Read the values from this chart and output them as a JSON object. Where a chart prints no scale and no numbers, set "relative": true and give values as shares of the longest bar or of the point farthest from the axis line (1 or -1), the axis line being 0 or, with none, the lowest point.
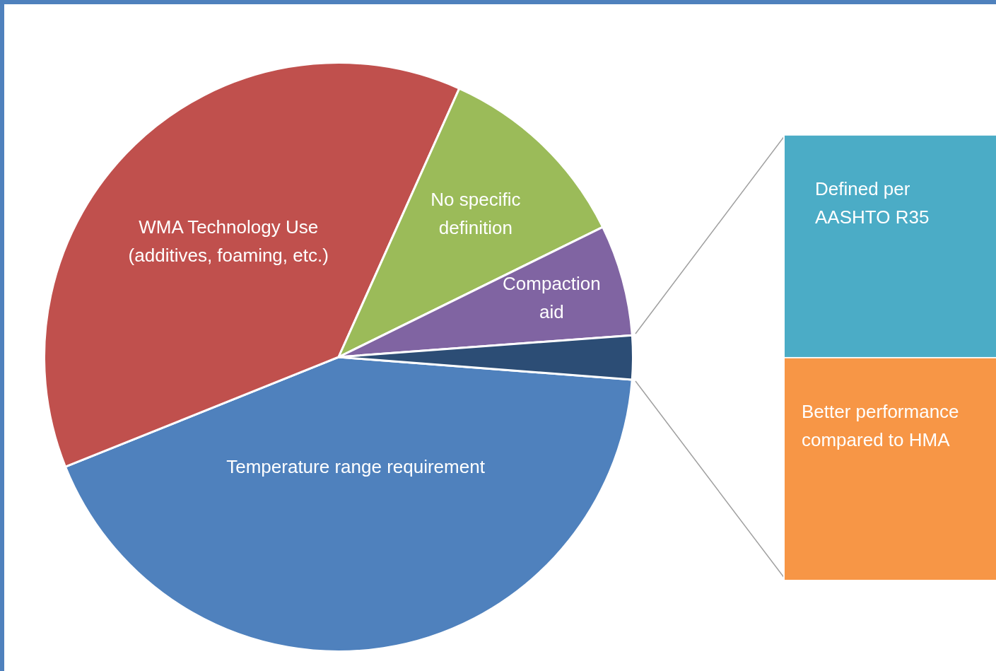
{
  "chart_data": [
    {
      "type": "pie",
      "categories": [
        "Temperature range requirement",
        "WMA Technology Use (additives, foaming, etc.)",
        "No specific definition",
        "Compaction aid",
        null
      ],
      "values": [
        42.7,
        37.8,
        11.0,
        6.1,
        2.4
      ],
      "colors": [
        "#4f81bd",
        "#c0504d",
        "#9bbb59",
        "#8064a2",
        "#2c4d75"
      ]
    },
    {
      "type": "bar",
      "relative": true,
      "stacked": true,
      "categories": [
        null
      ],
      "series": [
        {
          "name": "Better performance compared to HMA",
          "color": "#f79646",
          "values": [
            0.5
          ]
        },
        {
          "name": "Defined per AASHTO R35",
          "color": "#4bacc6",
          "values": [
            0.5
          ]
        }
      ]
    }
  ]
}
